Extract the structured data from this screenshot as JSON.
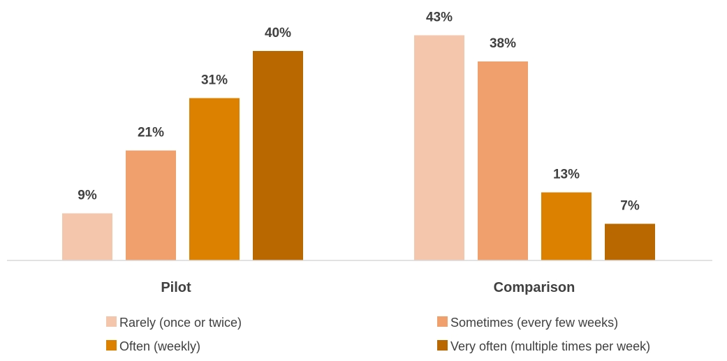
{
  "chart_data": {
    "type": "bar",
    "title": "",
    "xlabel": "",
    "ylabel": "",
    "categories": [
      "Pilot",
      "Comparison"
    ],
    "series": [
      {
        "name": "Rarely (once or twice)",
        "values": [
          9,
          43
        ],
        "labels": [
          "9%",
          "43%"
        ],
        "color": "#F4C6AC"
      },
      {
        "name": "Sometimes (every few weeks)",
        "values": [
          21,
          38
        ],
        "labels": [
          "21%",
          "38%"
        ],
        "color": "#EFA06C"
      },
      {
        "name": "Often (weekly)",
        "values": [
          31,
          13
        ],
        "labels": [
          "31%",
          "13%"
        ],
        "color": "#DC8000"
      },
      {
        "name": "Very often (multiple times per week)",
        "values": [
          40,
          7
        ],
        "labels": [
          "40%",
          "7%"
        ],
        "color": "#B96800"
      }
    ],
    "value_unit": "%",
    "ylim": [
      0,
      45
    ],
    "grid": false,
    "legend_position": "bottom",
    "axis_color": "#D9D9D9"
  }
}
